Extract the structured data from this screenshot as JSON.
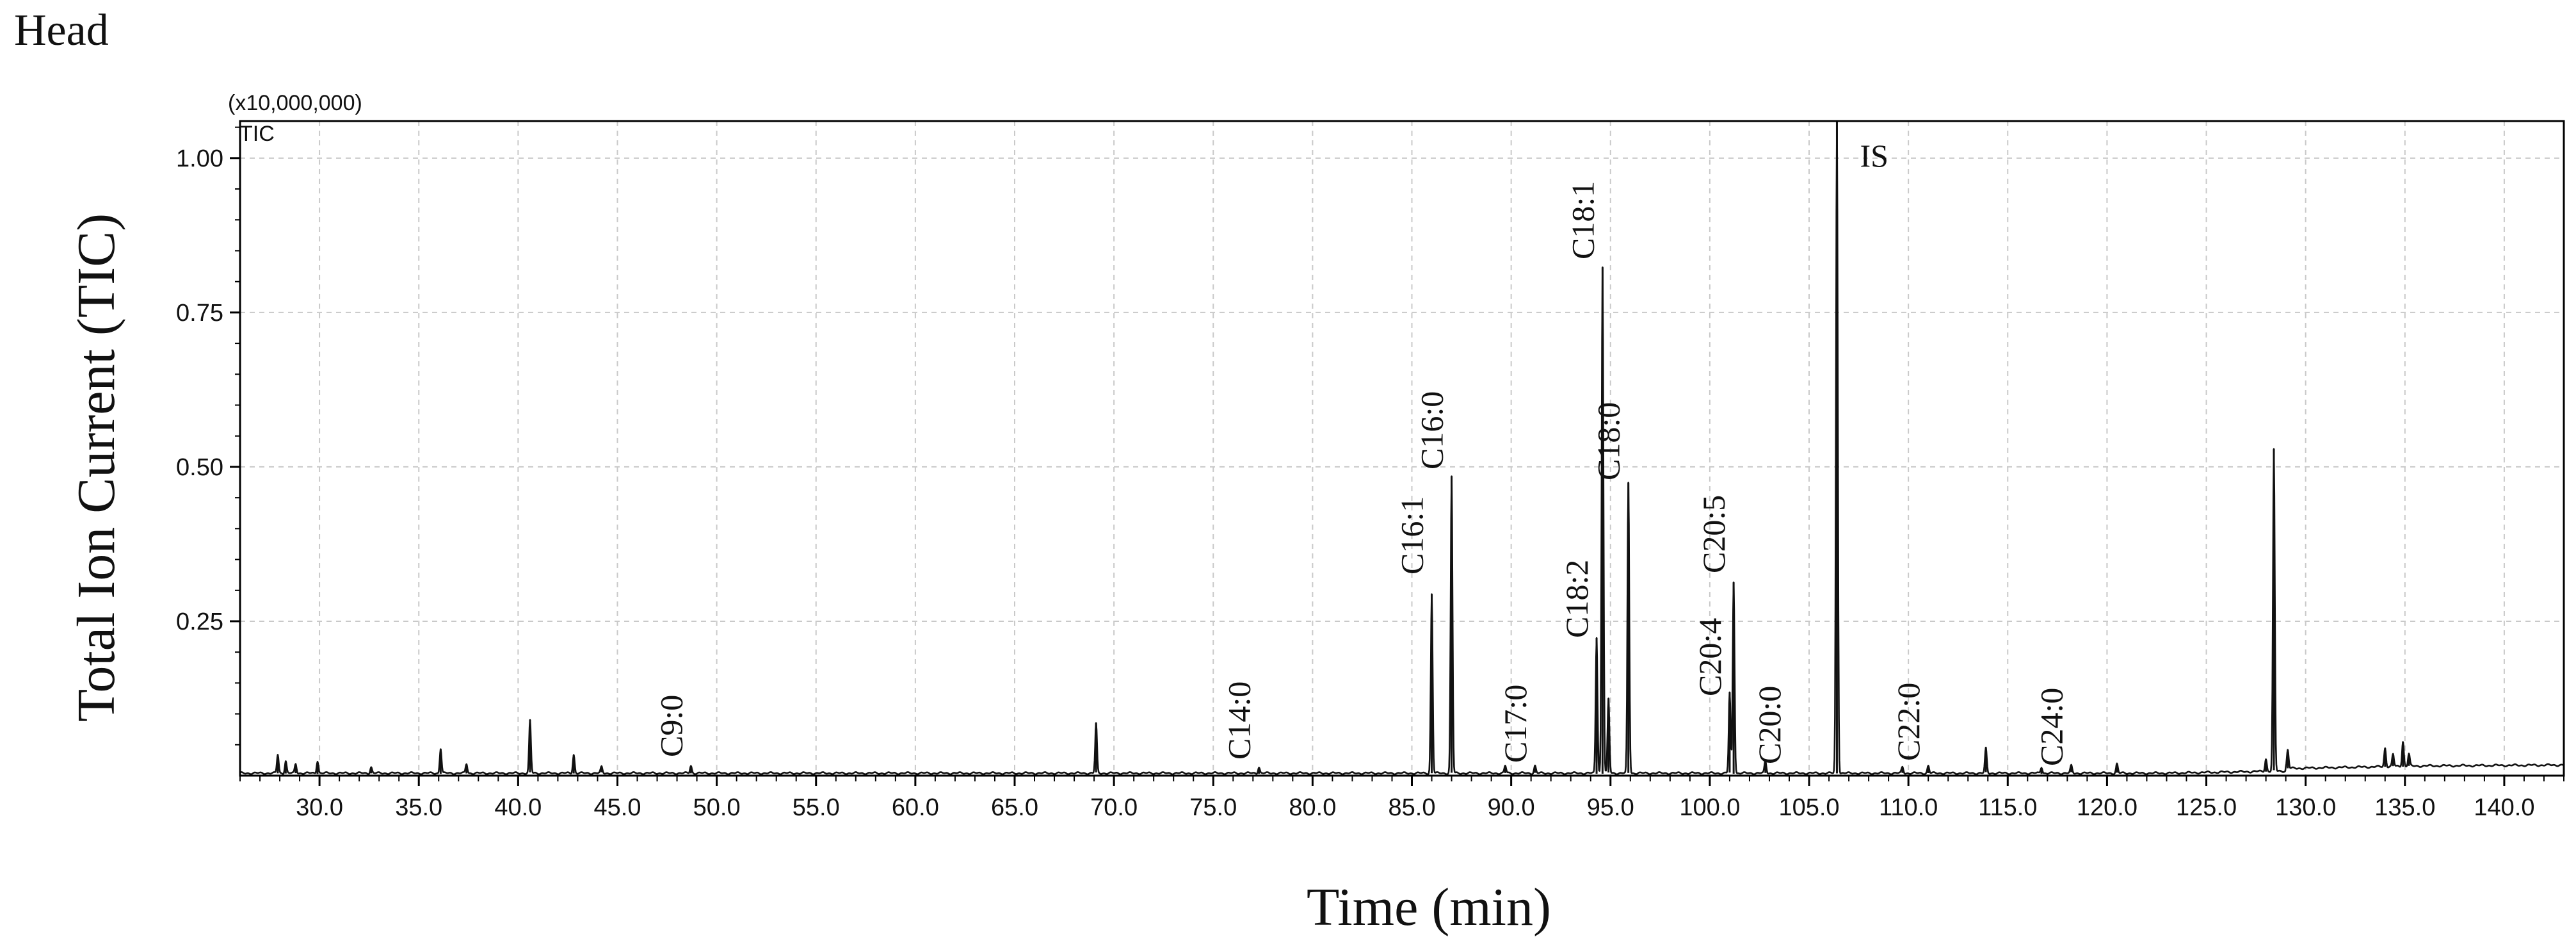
{
  "panel_title": "Head",
  "chart_data": {
    "type": "line",
    "title": "",
    "trace_label": "TIC",
    "scale_note": "(x10,000,000)",
    "xlabel": "Time (min)",
    "ylabel": "Total Ion Current (TIC)",
    "xlim": [
      26.0,
      143.0
    ],
    "ylim": [
      0.0,
      1.06
    ],
    "grid": true,
    "x_ticks": [
      30.0,
      35.0,
      40.0,
      45.0,
      50.0,
      55.0,
      60.0,
      65.0,
      70.0,
      75.0,
      80.0,
      85.0,
      90.0,
      95.0,
      100.0,
      105.0,
      110.0,
      115.0,
      120.0,
      125.0,
      130.0,
      135.0,
      140.0
    ],
    "x_tick_labels": [
      "30.0",
      "35.0",
      "40.0",
      "45.0",
      "50.0",
      "55.0",
      "60.0",
      "65.0",
      "70.0",
      "75.0",
      "80.0",
      "85.0",
      "90.0",
      "95.0",
      "100.0",
      "105.0",
      "110.0",
      "115.0",
      "120.0",
      "125.0",
      "130.0",
      "135.0",
      "140.0"
    ],
    "y_ticks": [
      0.25,
      0.5,
      0.75,
      1.0
    ],
    "y_tick_labels": [
      "0.25",
      "0.50",
      "0.75",
      "1.00"
    ],
    "series": [
      {
        "peaks": [
          {
            "x": 27.9,
            "y": 0.03
          },
          {
            "x": 28.3,
            "y": 0.02
          },
          {
            "x": 28.8,
            "y": 0.015
          },
          {
            "x": 29.9,
            "y": 0.02
          },
          {
            "x": 32.6,
            "y": 0.01
          },
          {
            "x": 36.1,
            "y": 0.04
          },
          {
            "x": 37.4,
            "y": 0.015
          },
          {
            "x": 40.6,
            "y": 0.085
          },
          {
            "x": 42.8,
            "y": 0.03
          },
          {
            "x": 44.2,
            "y": 0.01
          },
          {
            "x": 48.7,
            "y": 0.012
          },
          {
            "x": 69.1,
            "y": 0.08
          },
          {
            "x": 77.3,
            "y": 0.01
          },
          {
            "x": 86.0,
            "y": 0.29
          },
          {
            "x": 87.0,
            "y": 0.48
          },
          {
            "x": 89.7,
            "y": 0.012
          },
          {
            "x": 91.2,
            "y": 0.012
          },
          {
            "x": 94.3,
            "y": 0.22
          },
          {
            "x": 94.6,
            "y": 0.82
          },
          {
            "x": 94.9,
            "y": 0.12
          },
          {
            "x": 95.9,
            "y": 0.47
          },
          {
            "x": 101.0,
            "y": 0.13
          },
          {
            "x": 101.2,
            "y": 0.31
          },
          {
            "x": 102.8,
            "y": 0.02
          },
          {
            "x": 106.4,
            "y": 1.06
          },
          {
            "x": 109.7,
            "y": 0.01
          },
          {
            "x": 111.0,
            "y": 0.012
          },
          {
            "x": 113.9,
            "y": 0.04
          },
          {
            "x": 116.7,
            "y": 0.01
          },
          {
            "x": 118.2,
            "y": 0.012
          },
          {
            "x": 120.5,
            "y": 0.015
          },
          {
            "x": 128.0,
            "y": 0.02
          },
          {
            "x": 128.4,
            "y": 0.52
          },
          {
            "x": 129.1,
            "y": 0.03
          },
          {
            "x": 134.0,
            "y": 0.03
          },
          {
            "x": 134.4,
            "y": 0.02
          },
          {
            "x": 134.9,
            "y": 0.04
          },
          {
            "x": 135.2,
            "y": 0.02
          }
        ]
      }
    ],
    "annotations": [
      {
        "text": "C9:0",
        "x": 48.7
      },
      {
        "text": "C14:0",
        "x": 77.3
      },
      {
        "text": "C16:1",
        "x": 86.0
      },
      {
        "text": "C16:0",
        "x": 87.0
      },
      {
        "text": "C17:0",
        "x": 91.2
      },
      {
        "text": "C18:2",
        "x": 94.3
      },
      {
        "text": "C18:1",
        "x": 94.6
      },
      {
        "text": "C18:0",
        "x": 95.9
      },
      {
        "text": "C20:4",
        "x": 101.0
      },
      {
        "text": "C20:5",
        "x": 101.2
      },
      {
        "text": "C20:0",
        "x": 104.0
      },
      {
        "text": "C22:0",
        "x": 111.0
      },
      {
        "text": "C24:0",
        "x": 118.2
      },
      {
        "text": "IS",
        "x": 106.4
      }
    ]
  }
}
